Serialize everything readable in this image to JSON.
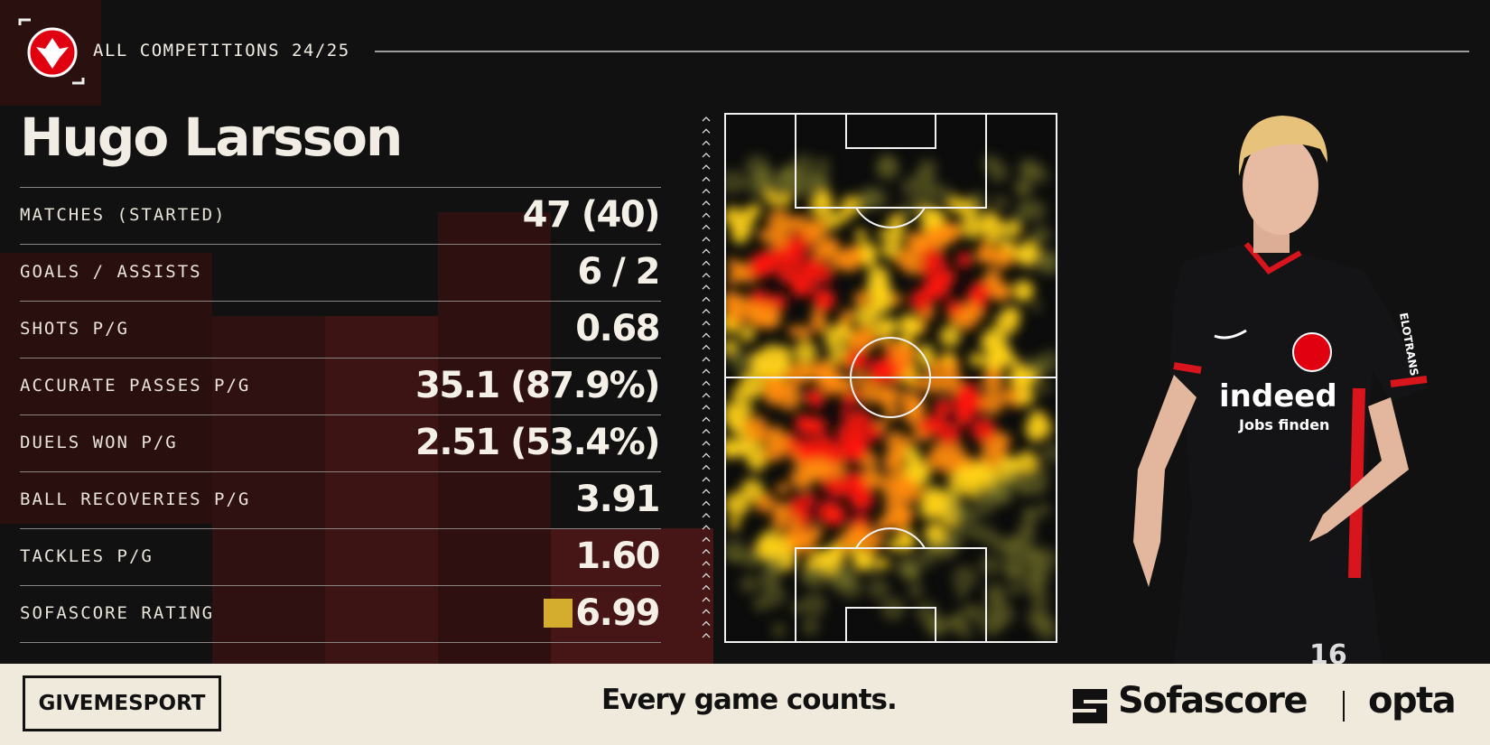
{
  "header": {
    "competition": "ALL COMPETITIONS 24/25",
    "player_name": "Hugo Larsson"
  },
  "stats": [
    {
      "label": "MATCHES (STARTED)",
      "value": "47 (40)"
    },
    {
      "label": "GOALS / ASSISTS",
      "value": "6 / 2"
    },
    {
      "label": "SHOTS P/G",
      "value": "0.68"
    },
    {
      "label": "ACCURATE PASSES P/G",
      "value": "35.1 (87.9%)"
    },
    {
      "label": "DUELS WON P/G",
      "value": "2.51 (53.4%)"
    },
    {
      "label": "BALL RECOVERIES P/G",
      "value": "3.91"
    },
    {
      "label": "TACKLES P/G",
      "value": "1.60"
    },
    {
      "label": "SOFASCORE RATING",
      "value": "6.99"
    }
  ],
  "jersey": {
    "sponsor": "indeed",
    "sponsor_line": "Jobs finden",
    "sleeve": "ELOTRANS",
    "number": "16"
  },
  "footer": {
    "brand": "GIVEMESPORT",
    "slogan": "Every game counts.",
    "partner": "Sofascore",
    "data_partner": "opta"
  }
}
